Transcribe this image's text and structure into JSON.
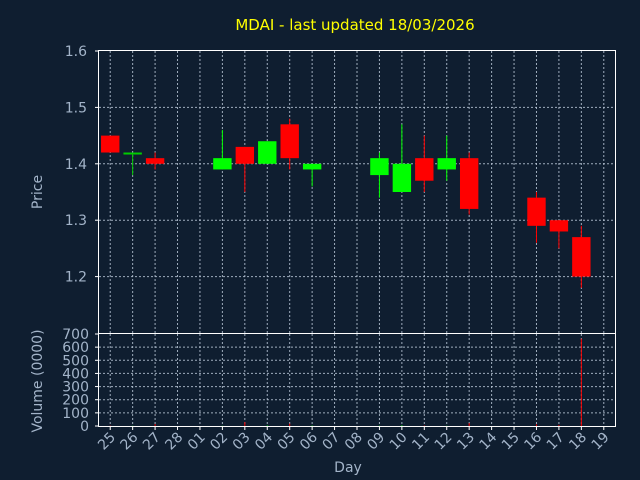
{
  "title": "MDAI - last updated 18/03/2026",
  "chart_data": [
    {
      "type": "candlestick",
      "ylabel": "Price",
      "ylim": [
        1.1,
        1.6
      ],
      "yticks": [
        "1.2",
        "1.3",
        "1.4",
        "1.5",
        "1.6"
      ],
      "grid": true,
      "colors": {
        "up": "#00ff00",
        "down": "#ff0000",
        "flat": "#00cc00"
      },
      "candles": [
        {
          "day": "25",
          "open": 1.45,
          "high": 1.45,
          "low": 1.42,
          "close": 1.42
        },
        {
          "day": "26",
          "open": 1.42,
          "high": 1.42,
          "low": 1.38,
          "close": 1.42
        },
        {
          "day": "27",
          "open": 1.41,
          "high": 1.42,
          "low": 1.39,
          "close": 1.4
        },
        {
          "day": "02",
          "open": 1.39,
          "high": 1.46,
          "low": 1.39,
          "close": 1.41
        },
        {
          "day": "03",
          "open": 1.43,
          "high": 1.43,
          "low": 1.35,
          "close": 1.4
        },
        {
          "day": "04",
          "open": 1.4,
          "high": 1.44,
          "low": 1.4,
          "close": 1.44
        },
        {
          "day": "05",
          "open": 1.47,
          "high": 1.48,
          "low": 1.39,
          "close": 1.41
        },
        {
          "day": "06",
          "open": 1.39,
          "high": 1.4,
          "low": 1.36,
          "close": 1.4
        },
        {
          "day": "09",
          "open": 1.38,
          "high": 1.42,
          "low": 1.34,
          "close": 1.41
        },
        {
          "day": "10",
          "open": 1.35,
          "high": 1.47,
          "low": 1.35,
          "close": 1.4
        },
        {
          "day": "11",
          "open": 1.41,
          "high": 1.45,
          "low": 1.35,
          "close": 1.37
        },
        {
          "day": "12",
          "open": 1.39,
          "high": 1.45,
          "low": 1.37,
          "close": 1.41
        },
        {
          "day": "13",
          "open": 1.41,
          "high": 1.42,
          "low": 1.31,
          "close": 1.32
        },
        {
          "day": "16",
          "open": 1.34,
          "high": 1.35,
          "low": 1.26,
          "close": 1.29
        },
        {
          "day": "17",
          "open": 1.3,
          "high": 1.3,
          "low": 1.25,
          "close": 1.28
        },
        {
          "day": "18",
          "open": 1.27,
          "high": 1.29,
          "low": 1.18,
          "close": 1.2
        }
      ]
    },
    {
      "type": "bar",
      "ylabel": "Volume (0000)",
      "xlabel": "Day",
      "ylim": [
        0,
        700
      ],
      "yticks": [
        "0",
        "100",
        "200",
        "300",
        "400",
        "500",
        "600",
        "700"
      ],
      "grid": true,
      "categories": [
        "25",
        "26",
        "27",
        "28",
        "01",
        "02",
        "03",
        "04",
        "05",
        "06",
        "07",
        "08",
        "09",
        "10",
        "11",
        "12",
        "13",
        "14",
        "15",
        "16",
        "17",
        "18",
        "19"
      ],
      "values": [
        3,
        2,
        15,
        0,
        0,
        2,
        30,
        5,
        18,
        4,
        0,
        0,
        3,
        6,
        4,
        2,
        22,
        0,
        0,
        12,
        8,
        665,
        0
      ],
      "bar_colors": [
        "#ff0000",
        "#00ff00",
        "#ff0000",
        "#ff0000",
        "#ff0000",
        "#00ff00",
        "#ff0000",
        "#00ff00",
        "#ff0000",
        "#00ff00",
        "#ff0000",
        "#ff0000",
        "#00ff00",
        "#00ff00",
        "#ff0000",
        "#00ff00",
        "#ff0000",
        "#ff0000",
        "#ff0000",
        "#ff0000",
        "#ff0000",
        "#ff0000",
        "#ff0000"
      ]
    }
  ]
}
